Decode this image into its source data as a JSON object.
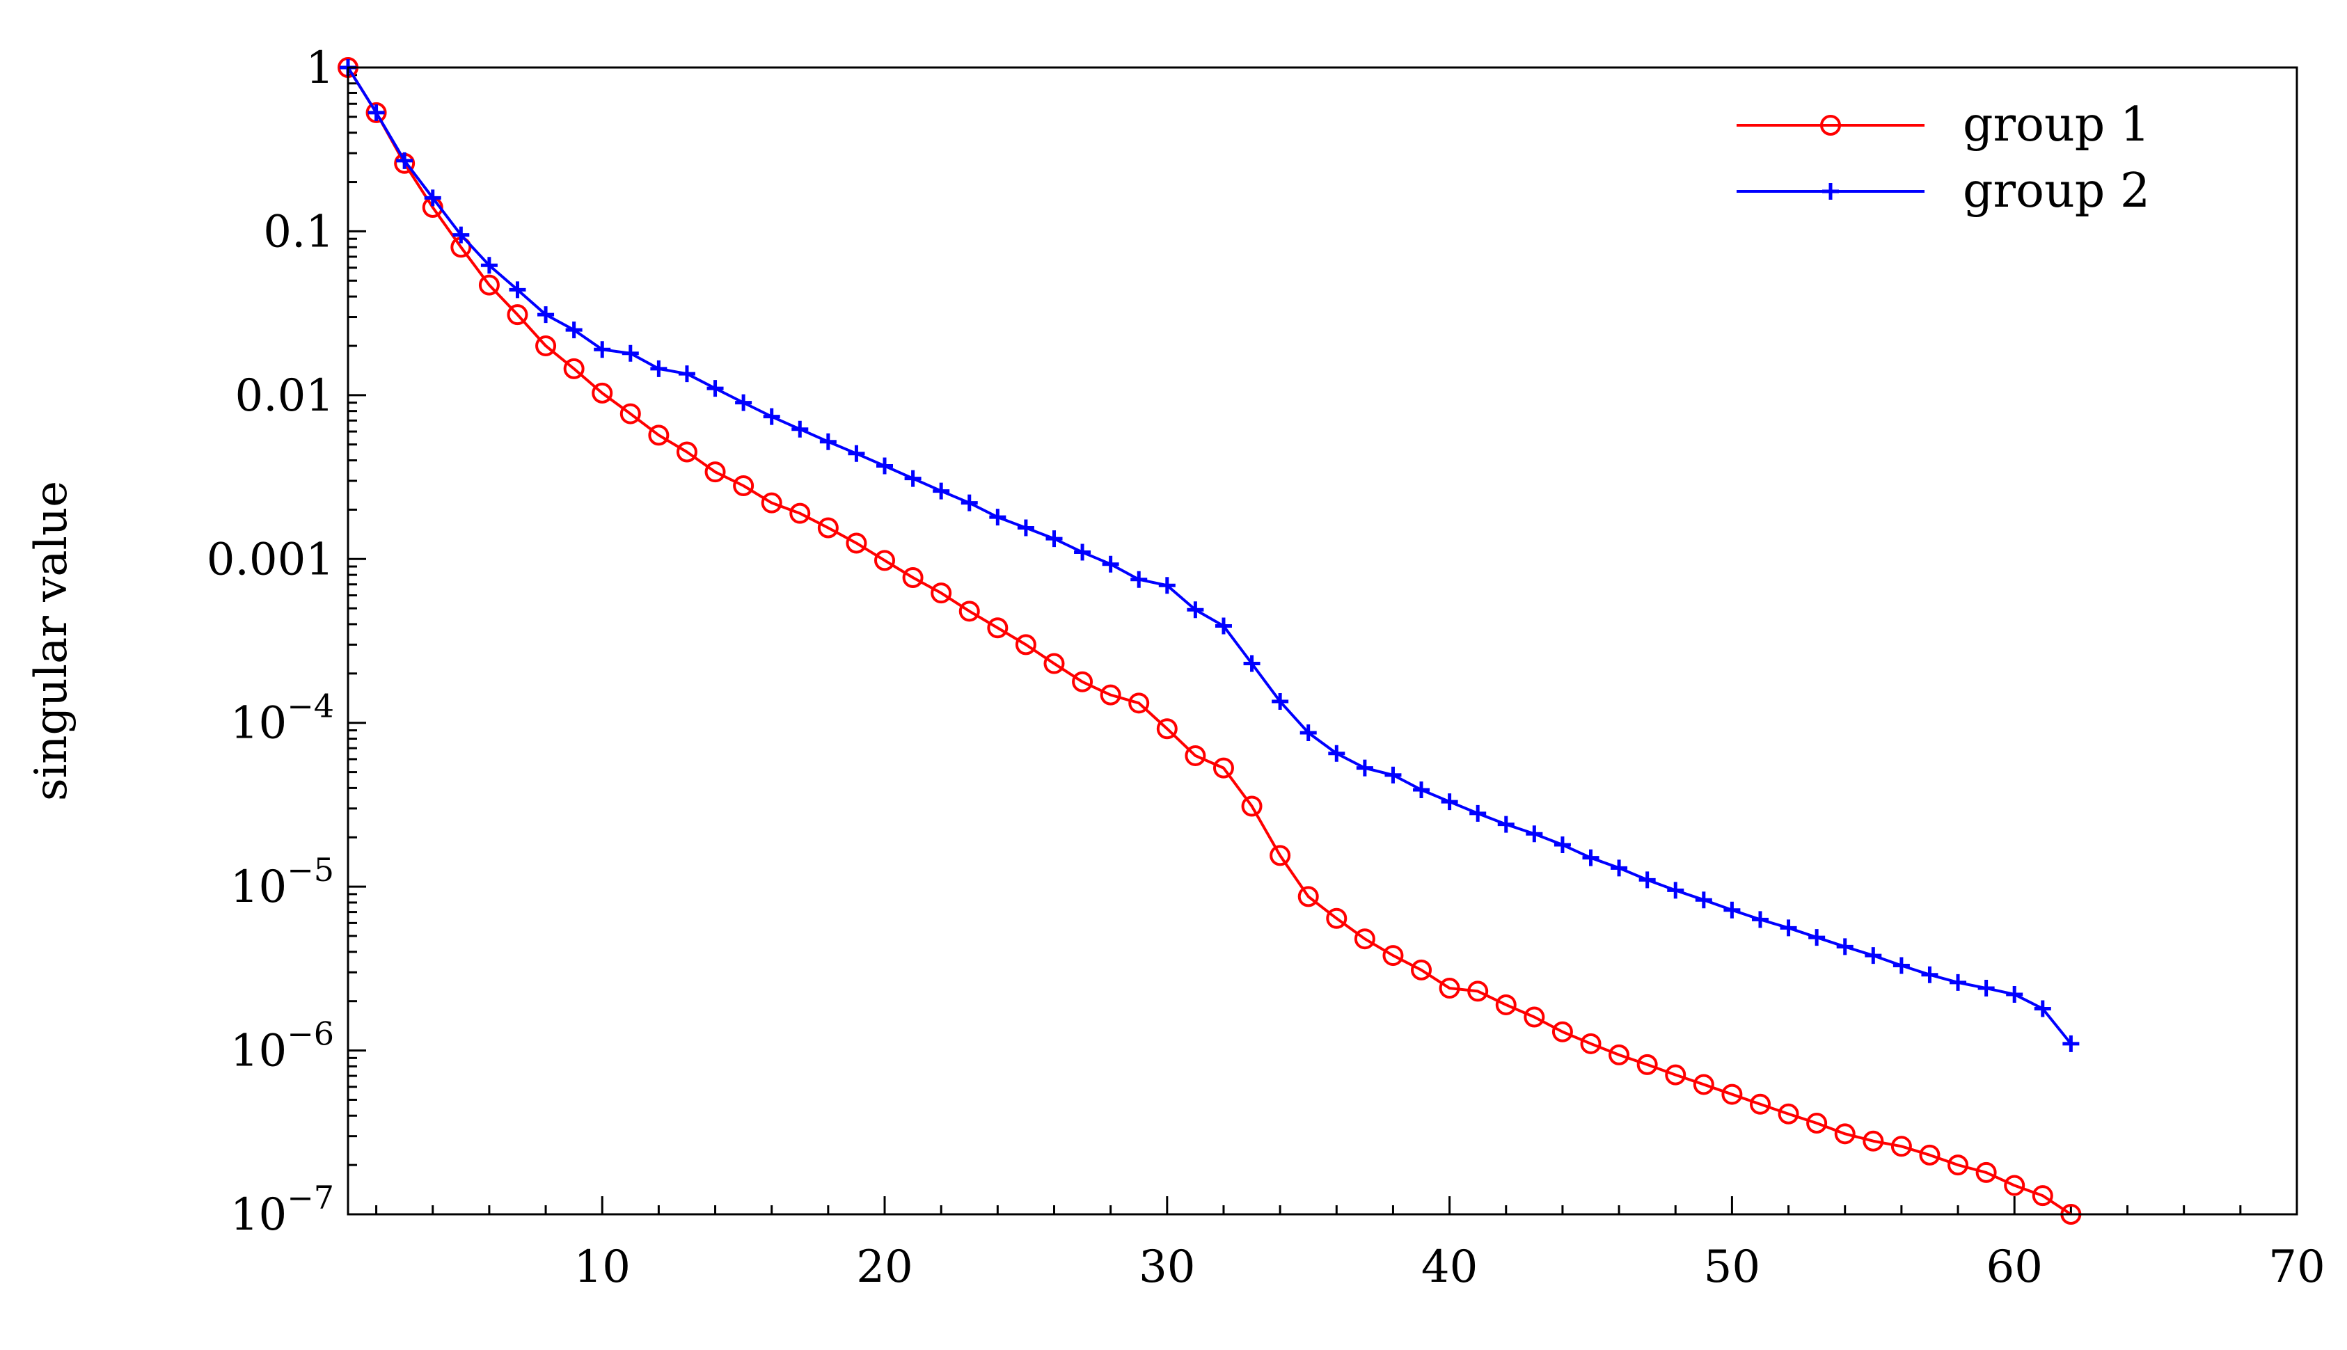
{
  "chart_data": {
    "type": "line",
    "title": "",
    "xlabel": "",
    "ylabel": "singular value",
    "xlim": [
      1,
      70
    ],
    "ylim": [
      1e-07,
      1
    ],
    "yscale": "log",
    "grid": false,
    "legend_position": "top-right",
    "x_ticks": [
      {
        "value": 10,
        "label": "10"
      },
      {
        "value": 20,
        "label": "20"
      },
      {
        "value": 30,
        "label": "30"
      },
      {
        "value": 40,
        "label": "40"
      },
      {
        "value": 50,
        "label": "50"
      },
      {
        "value": 60,
        "label": "60"
      },
      {
        "value": 70,
        "label": "70"
      }
    ],
    "y_ticks": [
      {
        "value": 1,
        "label": "1"
      },
      {
        "value": 0.1,
        "label": "0.1"
      },
      {
        "value": 0.01,
        "label": "0.01"
      },
      {
        "value": 0.001,
        "label": "0.001"
      },
      {
        "value": 0.0001,
        "base": "10",
        "exponent": "−4"
      },
      {
        "value": 1e-05,
        "base": "10",
        "exponent": "−5"
      },
      {
        "value": 1e-06,
        "base": "10",
        "exponent": "−6"
      },
      {
        "value": 1e-07,
        "base": "10",
        "exponent": "−7"
      }
    ],
    "x": [
      1,
      2,
      3,
      4,
      5,
      6,
      7,
      8,
      9,
      10,
      11,
      12,
      13,
      14,
      15,
      16,
      17,
      18,
      19,
      20,
      21,
      22,
      23,
      24,
      25,
      26,
      27,
      28,
      29,
      30,
      31,
      32,
      33,
      34,
      35,
      36,
      37,
      38,
      39,
      40,
      41,
      42,
      43,
      44,
      45,
      46,
      47,
      48,
      49,
      50,
      51,
      52,
      53,
      54,
      55,
      56,
      57,
      58,
      59,
      60,
      61,
      62
    ],
    "series": [
      {
        "name": "group 1",
        "color": "#ff0000",
        "marker": "circle",
        "values": [
          1.0,
          0.53,
          0.26,
          0.14,
          0.08,
          0.047,
          0.031,
          0.02,
          0.0145,
          0.0103,
          0.0077,
          0.0057,
          0.0045,
          0.0034,
          0.0028,
          0.0022,
          0.0019,
          0.00155,
          0.00125,
          0.00098,
          0.00077,
          0.00062,
          0.00048,
          0.00038,
          0.0003,
          0.00023,
          0.000178,
          0.000148,
          0.000132,
          9.2e-05,
          6.3e-05,
          5.3e-05,
          3.1e-05,
          1.55e-05,
          8.7e-06,
          6.4e-06,
          4.8e-06,
          3.8e-06,
          3.1e-06,
          2.4e-06,
          2.3e-06,
          1.9e-06,
          1.6e-06,
          1.3e-06,
          1.1e-06,
          9.4e-07,
          8.2e-07,
          7.1e-07,
          6.2e-07,
          5.4e-07,
          4.7e-07,
          4.1e-07,
          3.6e-07,
          3.1e-07,
          2.8e-07,
          2.6e-07,
          2.3e-07,
          2e-07,
          1.8e-07,
          1.5e-07,
          1.3e-07,
          1e-07
        ]
      },
      {
        "name": "group 2",
        "color": "#0000ff",
        "marker": "plus",
        "values": [
          1.0,
          0.53,
          0.27,
          0.16,
          0.095,
          0.062,
          0.044,
          0.031,
          0.025,
          0.019,
          0.018,
          0.0145,
          0.0135,
          0.011,
          0.009,
          0.0074,
          0.0062,
          0.0052,
          0.0044,
          0.0037,
          0.0031,
          0.0026,
          0.0022,
          0.0018,
          0.00155,
          0.00133,
          0.0011,
          0.00093,
          0.00075,
          0.00069,
          0.00049,
          0.00039,
          0.00023,
          0.000135,
          8.7e-05,
          6.5e-05,
          5.3e-05,
          4.8e-05,
          3.9e-05,
          3.3e-05,
          2.8e-05,
          2.4e-05,
          2.1e-05,
          1.8e-05,
          1.5e-05,
          1.3e-05,
          1.1e-05,
          9.5e-06,
          8.3e-06,
          7.2e-06,
          6.3e-06,
          5.6e-06,
          4.9e-06,
          4.3e-06,
          3.8e-06,
          3.3e-06,
          2.9e-06,
          2.6e-06,
          2.4e-06,
          2.2e-06,
          1.8e-06,
          1.1e-06
        ]
      }
    ]
  }
}
